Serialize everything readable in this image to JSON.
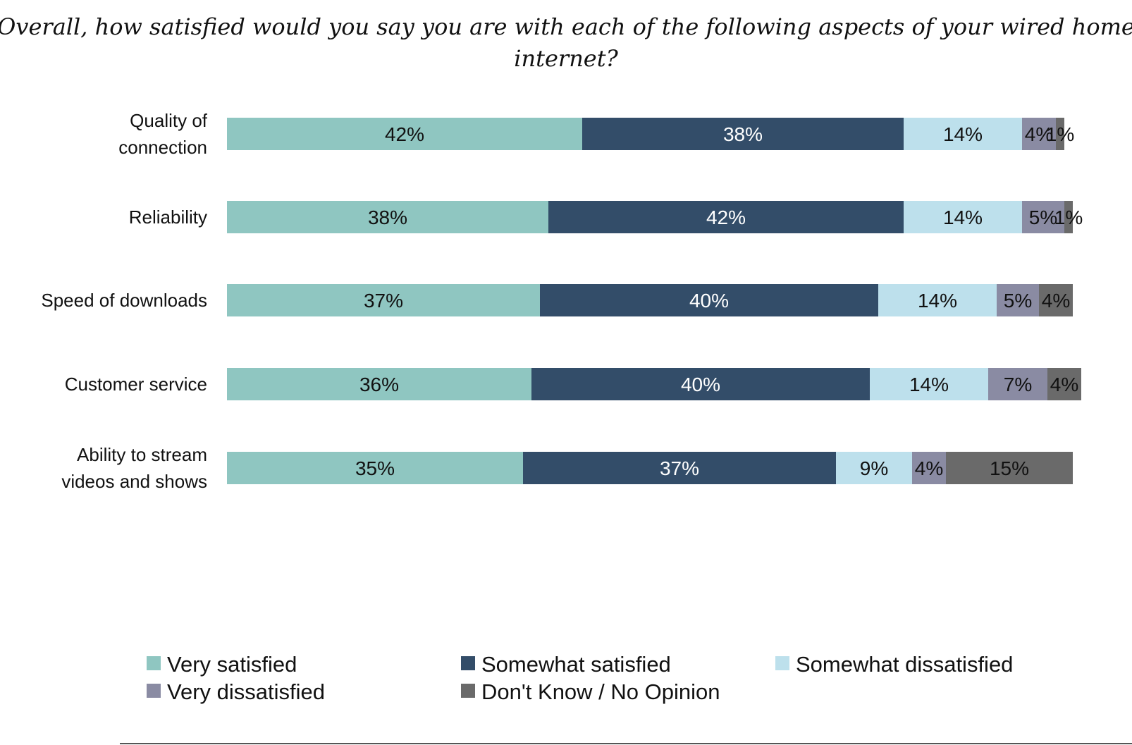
{
  "chart_data": {
    "type": "bar",
    "orientation": "horizontal",
    "stacked": true,
    "title": "Overall, how satisfied would you say you are with each of the following aspects of your wired home internet?",
    "title_lines": [
      "Overall, how satisfied would you say you are with each of the following aspects of your wired home",
      "internet?"
    ],
    "categories": [
      [
        "Quality of",
        "connection"
      ],
      [
        "Reliability"
      ],
      [
        "Speed of downloads"
      ],
      [
        "Customer service"
      ],
      [
        "Ability to stream",
        "videos and shows"
      ]
    ],
    "series": [
      {
        "name": "Very satisfied",
        "color": "#8fc6c1",
        "label_color": "#111111",
        "values": [
          42,
          38,
          37,
          36,
          35
        ]
      },
      {
        "name": "Somewhat satisfied",
        "color": "#334d69",
        "label_color": "#ffffff",
        "values": [
          38,
          42,
          40,
          40,
          37
        ]
      },
      {
        "name": "Somewhat dissatisfied",
        "color": "#bde0ec",
        "label_color": "#111111",
        "values": [
          14,
          14,
          14,
          14,
          9
        ]
      },
      {
        "name": "Very dissatisfied",
        "color": "#8a8ba3",
        "label_color": "#111111",
        "values": [
          4,
          5,
          5,
          7,
          4
        ]
      },
      {
        "name": "Don't Know / No Opinion",
        "color": "#6a6a6a",
        "label_color": "#111111",
        "values": [
          1,
          1,
          4,
          4,
          15
        ]
      }
    ],
    "value_suffix": "%",
    "xlim": [
      0,
      100
    ],
    "xaxis_visible": false,
    "grid": false,
    "legend_position": "bottom"
  }
}
